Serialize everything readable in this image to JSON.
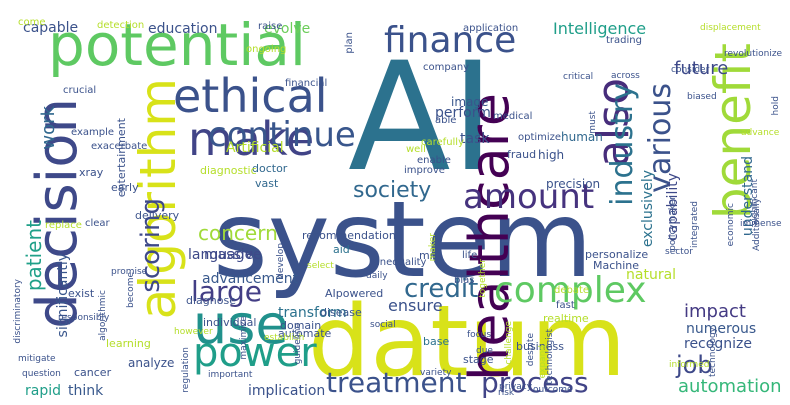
{
  "wordcloud": {
    "background": "#ffffff",
    "words": [
      {
        "text": "AI",
        "color": "#2c728e"
      },
      {
        "text": "system",
        "color": "#3b528b"
      },
      {
        "text": "datum",
        "color": "#d8e219"
      },
      {
        "text": "potential",
        "color": "#5ec962"
      },
      {
        "text": "decision",
        "color": "#3e4989"
      },
      {
        "text": "healthcare",
        "color": "#440154"
      },
      {
        "text": "benefit",
        "color": "#a0da39"
      },
      {
        "text": "also",
        "color": "#472d7b"
      },
      {
        "text": "algorithm",
        "color": "#d8e219"
      },
      {
        "text": "make",
        "color": "#414487"
      },
      {
        "text": "use",
        "color": "#21918c"
      },
      {
        "text": "ethical",
        "color": "#3b528b"
      },
      {
        "text": "finance",
        "color": "#3b528b"
      },
      {
        "text": "complex",
        "color": "#5ec962"
      },
      {
        "text": "amount",
        "color": "#46337e"
      },
      {
        "text": "continue",
        "color": "#39568c"
      },
      {
        "text": "industry",
        "color": "#2c728e"
      },
      {
        "text": "various",
        "color": "#3b528b"
      },
      {
        "text": "power",
        "color": "#1f9e89"
      },
      {
        "text": "treatment",
        "color": "#3b528b"
      },
      {
        "text": "process",
        "color": "#414487"
      },
      {
        "text": "scoring",
        "color": "#3e4989"
      },
      {
        "text": "credit",
        "color": "#31688e"
      },
      {
        "text": "large",
        "color": "#433e85"
      },
      {
        "text": "society",
        "color": "#31688e"
      },
      {
        "text": "concern",
        "color": "#a0da39"
      },
      {
        "text": "patient",
        "color": "#1fa088"
      },
      {
        "text": "job",
        "color": "#3e4989"
      },
      {
        "text": "future",
        "color": "#3e4989"
      },
      {
        "text": "impact",
        "color": "#443a83"
      },
      {
        "text": "automation",
        "color": "#35b779"
      },
      {
        "text": "work",
        "color": "#31688e"
      },
      {
        "text": "Intelligence",
        "color": "#1f9e89"
      },
      {
        "text": "capable",
        "color": "#3b528b"
      },
      {
        "text": "education",
        "color": "#3b528b"
      },
      {
        "text": "evolve",
        "color": "#6ccd5a"
      },
      {
        "text": "Artificial",
        "color": "#b5de2b"
      },
      {
        "text": "ensure",
        "color": "#3b528b"
      },
      {
        "text": "transform",
        "color": "#2c728e"
      },
      {
        "text": "advancement",
        "color": "#38588c"
      },
      {
        "text": "massive",
        "color": "#3e4989"
      },
      {
        "text": "language",
        "color": "#3e4989"
      },
      {
        "text": "recognize",
        "color": "#3b528b"
      },
      {
        "text": "numerous",
        "color": "#38588c"
      },
      {
        "text": "natural",
        "color": "#b5de2b"
      },
      {
        "text": "capability",
        "color": "#3e4989"
      },
      {
        "text": "exclusively",
        "color": "#2c728e"
      },
      {
        "text": "understand",
        "color": "#31688e"
      },
      {
        "text": "significantly",
        "color": "#39568c"
      },
      {
        "text": "analyze",
        "color": "#3b528b"
      },
      {
        "text": "rapid",
        "color": "#1f9e89"
      },
      {
        "text": "think",
        "color": "#38588c"
      },
      {
        "text": "implication",
        "color": "#3b528b"
      },
      {
        "text": "perform",
        "color": "#3b528b"
      },
      {
        "text": "task",
        "color": "#3b528b"
      },
      {
        "text": "human",
        "color": "#31688e"
      },
      {
        "text": "image",
        "color": "#39568c"
      },
      {
        "text": "high",
        "color": "#3b528b"
      },
      {
        "text": "precision",
        "color": "#3b528b"
      },
      {
        "text": "entertainment",
        "color": "#3b528b"
      },
      {
        "text": "fraud",
        "color": "#3b528b"
      },
      {
        "text": "Machine",
        "color": "#3b528b"
      },
      {
        "text": "AIpowered",
        "color": "#3b528b"
      },
      {
        "text": "realtime",
        "color": "#b5de2b"
      },
      {
        "text": "disease",
        "color": "#39568c"
      },
      {
        "text": "domain",
        "color": "#3b528b"
      },
      {
        "text": "base",
        "color": "#2c728e"
      },
      {
        "text": "stage",
        "color": "#3b528b"
      },
      {
        "text": "business",
        "color": "#3b528b"
      },
      {
        "text": "individual",
        "color": "#3b528b"
      },
      {
        "text": "automate",
        "color": "#3b528b"
      },
      {
        "text": "diagnose",
        "color": "#3b528b"
      },
      {
        "text": "doctor",
        "color": "#31688e"
      },
      {
        "text": "diagnostic",
        "color": "#b5de2b"
      },
      {
        "text": "recommendation",
        "color": "#3b528b"
      },
      {
        "text": "vast",
        "color": "#31688e"
      },
      {
        "text": "delivery",
        "color": "#3b528b"
      },
      {
        "text": "cancer",
        "color": "#3b528b"
      },
      {
        "text": "learning",
        "color": "#b5de2b"
      },
      {
        "text": "mri",
        "color": "#3b528b"
      },
      {
        "text": "aid",
        "color": "#2c728e"
      },
      {
        "text": "exist",
        "color": "#3b528b"
      },
      {
        "text": "xray",
        "color": "#3b528b"
      },
      {
        "text": "early",
        "color": "#3b528b"
      },
      {
        "text": "medical",
        "color": "#3b528b"
      },
      {
        "text": "application",
        "color": "#3b528b"
      },
      {
        "text": "trading",
        "color": "#3b528b"
      },
      {
        "text": "company",
        "color": "#3b528b"
      },
      {
        "text": "plan",
        "color": "#3b528b"
      },
      {
        "text": "financial",
        "color": "#3b528b"
      },
      {
        "text": "able",
        "color": "#3b528b"
      },
      {
        "text": "optimize",
        "color": "#3b528b"
      },
      {
        "text": "improve",
        "color": "#3b528b"
      },
      {
        "text": "enable",
        "color": "#3b528b"
      },
      {
        "text": "carefully",
        "color": "#b5de2b"
      },
      {
        "text": "well",
        "color": "#b5de2b"
      },
      {
        "text": "detection",
        "color": "#b5de2b"
      },
      {
        "text": "ongoing",
        "color": "#b5de2b"
      },
      {
        "text": "raise",
        "color": "#3b528b"
      },
      {
        "text": "crucial",
        "color": "#3b528b"
      },
      {
        "text": "example",
        "color": "#3b528b"
      },
      {
        "text": "exacerbate",
        "color": "#3b528b"
      },
      {
        "text": "replace",
        "color": "#b5de2b"
      },
      {
        "text": "clear",
        "color": "#3b528b"
      },
      {
        "text": "inequality",
        "color": "#3b528b"
      },
      {
        "text": "life",
        "color": "#3b528b"
      },
      {
        "text": "bias",
        "color": "#3b528b"
      },
      {
        "text": "together",
        "color": "#b5de2b"
      },
      {
        "text": "personalize",
        "color": "#3b528b"
      },
      {
        "text": "fast",
        "color": "#3b528b"
      },
      {
        "text": "debate",
        "color": "#b5de2b"
      },
      {
        "text": "social",
        "color": "#3b528b"
      },
      {
        "text": "select",
        "color": "#b5de2b"
      },
      {
        "text": "daily",
        "color": "#3b528b"
      },
      {
        "text": "develop",
        "color": "#3b528b"
      },
      {
        "text": "promise",
        "color": "#3b528b"
      },
      {
        "text": "responsibly",
        "color": "#3b528b"
      },
      {
        "text": "become",
        "color": "#3b528b"
      },
      {
        "text": "algorithmic",
        "color": "#3b528b"
      },
      {
        "text": "discriminatory",
        "color": "#3b528b"
      },
      {
        "text": "mitigate",
        "color": "#3b528b"
      },
      {
        "text": "question",
        "color": "#3b528b"
      },
      {
        "text": "however",
        "color": "#b5de2b"
      },
      {
        "text": "regulation",
        "color": "#3b528b"
      },
      {
        "text": "maximize",
        "color": "#3b528b"
      },
      {
        "text": "establish",
        "color": "#b5de2b"
      },
      {
        "text": "guideline",
        "color": "#3b528b"
      },
      {
        "text": "important",
        "color": "#3b528b"
      },
      {
        "text": "variety",
        "color": "#3b528b"
      },
      {
        "text": "focus",
        "color": "#3b528b"
      },
      {
        "text": "due",
        "color": "#3b528b"
      },
      {
        "text": "despite",
        "color": "#3b528b"
      },
      {
        "text": "privacy",
        "color": "#3b528b"
      },
      {
        "text": "risk",
        "color": "#3b528b"
      },
      {
        "text": "outcome",
        "color": "#3b528b"
      },
      {
        "text": "challenge",
        "color": "#b5de2b"
      },
      {
        "text": "expand",
        "color": "#b5de2b"
      },
      {
        "text": "technologist",
        "color": "#3b528b"
      },
      {
        "text": "technology",
        "color": "#3b528b"
      },
      {
        "text": "informed",
        "color": "#b5de2b"
      },
      {
        "text": "sector",
        "color": "#3b528b"
      },
      {
        "text": "economic",
        "color": "#3b528b"
      },
      {
        "text": "integrated",
        "color": "#3b528b"
      },
      {
        "text": "policymaker",
        "color": "#3b528b"
      },
      {
        "text": "significant",
        "color": "#3b528b"
      },
      {
        "text": "biased",
        "color": "#3b528b"
      },
      {
        "text": "consider",
        "color": "#3b528b"
      },
      {
        "text": "across",
        "color": "#3b528b"
      },
      {
        "text": "critical",
        "color": "#3b528b"
      },
      {
        "text": "must",
        "color": "#3b528b"
      },
      {
        "text": "displacement",
        "color": "#b5de2b"
      },
      {
        "text": "revolutionize",
        "color": "#3b528b"
      },
      {
        "text": "advance",
        "color": "#b5de2b"
      },
      {
        "text": "hold",
        "color": "#3b528b"
      },
      {
        "text": "Additionally",
        "color": "#3b528b"
      },
      {
        "text": "maker",
        "color": "#b5de2b"
      },
      {
        "text": "immense",
        "color": "#3b528b"
      },
      {
        "text": "come",
        "color": "#b5de2b"
      }
    ]
  }
}
